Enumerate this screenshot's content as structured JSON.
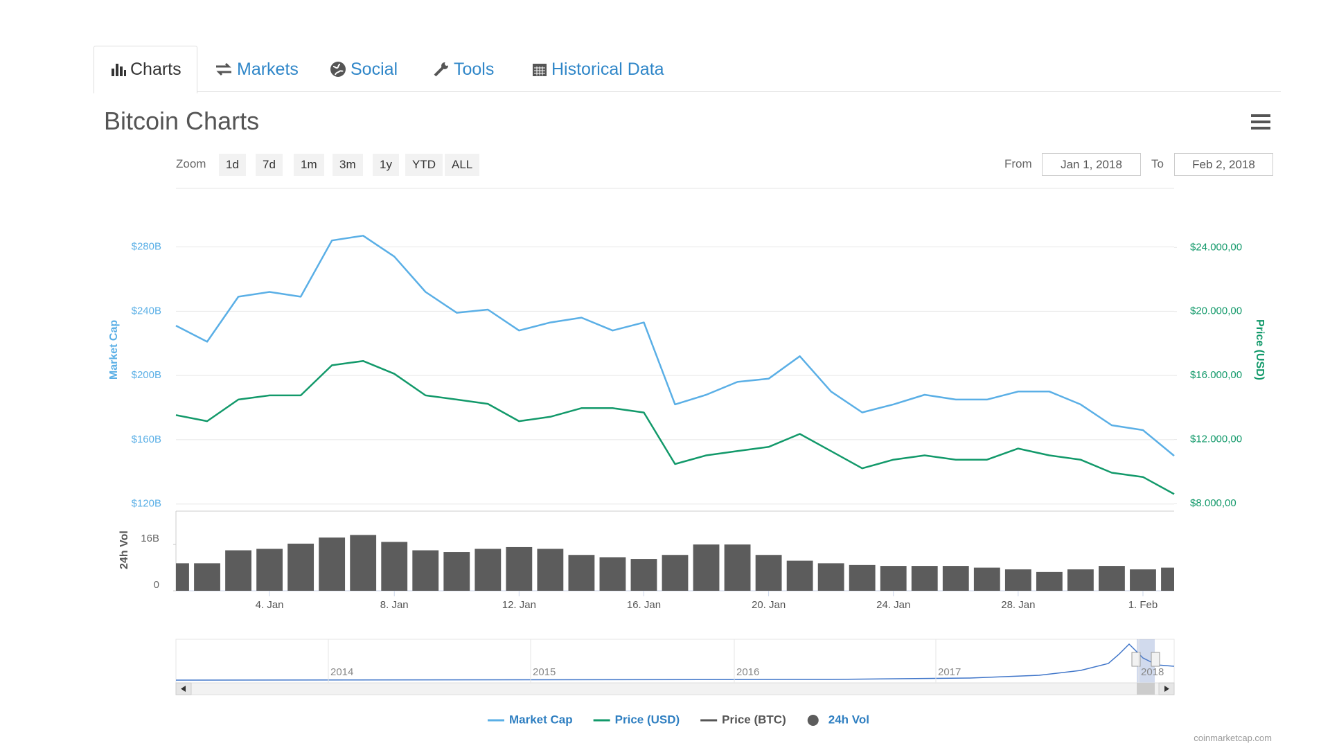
{
  "tabs": [
    "Charts",
    "Markets",
    "Social",
    "Tools",
    "Historical Data"
  ],
  "title": "Bitcoin Charts",
  "zoom": {
    "label": "Zoom",
    "buttons": [
      "1d",
      "7d",
      "1m",
      "3m",
      "1y",
      "YTD",
      "ALL"
    ]
  },
  "range": {
    "from_label": "From",
    "from": "Jan 1, 2018",
    "to_label": "To",
    "to": "Feb 2, 2018"
  },
  "chart_data": {
    "type": "line",
    "x": [
      "2018-01-01",
      "2018-01-02",
      "2018-01-03",
      "2018-01-04",
      "2018-01-05",
      "2018-01-06",
      "2018-01-07",
      "2018-01-08",
      "2018-01-09",
      "2018-01-10",
      "2018-01-11",
      "2018-01-12",
      "2018-01-13",
      "2018-01-14",
      "2018-01-15",
      "2018-01-16",
      "2018-01-17",
      "2018-01-18",
      "2018-01-19",
      "2018-01-20",
      "2018-01-21",
      "2018-01-22",
      "2018-01-23",
      "2018-01-24",
      "2018-01-25",
      "2018-01-26",
      "2018-01-27",
      "2018-01-28",
      "2018-01-29",
      "2018-01-30",
      "2018-01-31",
      "2018-02-01",
      "2018-02-02"
    ],
    "xlim": [
      "2018-01-01",
      "2018-02-02"
    ],
    "xticks": [
      {
        "value": "2018-01-04",
        "label": "4. Jan"
      },
      {
        "value": "2018-01-08",
        "label": "8. Jan"
      },
      {
        "value": "2018-01-12",
        "label": "12. Jan"
      },
      {
        "value": "2018-01-16",
        "label": "16. Jan"
      },
      {
        "value": "2018-01-20",
        "label": "20. Jan"
      },
      {
        "value": "2018-01-24",
        "label": "24. Jan"
      },
      {
        "value": "2018-01-28",
        "label": "28. Jan"
      },
      {
        "value": "2018-02-01",
        "label": "1. Feb"
      }
    ],
    "ylabel": "Market Cap",
    "ylim": [
      116,
      316
    ],
    "yticks": [
      {
        "value": 120,
        "label": "$120B"
      },
      {
        "value": 160,
        "label": "$160B"
      },
      {
        "value": 200,
        "label": "$200B"
      },
      {
        "value": 240,
        "label": "$240B"
      },
      {
        "value": 280,
        "label": "$280B"
      }
    ],
    "y2label": "Price (USD)",
    "y2lim": [
      7570,
      27650
    ],
    "y2ticks": [
      {
        "value": 8000,
        "label": "$8.000,00"
      },
      {
        "value": 12000,
        "label": "$12.000,00"
      },
      {
        "value": 16000,
        "label": "$16.000,00"
      },
      {
        "value": 20000,
        "label": "$20.000,00"
      },
      {
        "value": 24000,
        "label": "$24.000,00"
      }
    ],
    "y3label": "24h Vol",
    "y3lim": [
      0,
      27.3
    ],
    "y3ticks": [
      0,
      {
        "value": 16,
        "label": "16B"
      }
    ],
    "grid": true,
    "legend": "bottom",
    "series": [
      {
        "name": "Market Cap",
        "color": "#5aafe6",
        "values": [
          231,
          221,
          249,
          252,
          249,
          284,
          287,
          274,
          252,
          239,
          241,
          228,
          233,
          236,
          228,
          233,
          182,
          188,
          196,
          198,
          212,
          190,
          177,
          182,
          188,
          185,
          185,
          190,
          190,
          182,
          169,
          166,
          150
        ]
      },
      {
        "name": "Price (USD)",
        "color": "#12996a",
        "axis": "y2",
        "values": [
          13530,
          13150,
          14500,
          14760,
          14760,
          16640,
          16910,
          16110,
          14760,
          14500,
          14230,
          13150,
          13420,
          13960,
          13960,
          13690,
          10470,
          11010,
          11280,
          11540,
          12350,
          11280,
          10200,
          10740,
          11010,
          10740,
          10740,
          11440,
          11010,
          10740,
          9930,
          9660,
          8590
        ]
      },
      {
        "name": "Price (BTC)",
        "color": "#555555",
        "visible": false
      },
      {
        "name": "24h Vol",
        "color": "#5c5c5c",
        "type": "column",
        "axis": "y3",
        "values": [
          9.5,
          9.5,
          14,
          14.5,
          16.3,
          18.4,
          19.3,
          16.9,
          14,
          13.4,
          14.5,
          15.1,
          14.5,
          12.4,
          11.6,
          11,
          12.4,
          16,
          16,
          12.4,
          10.4,
          9.5,
          8.9,
          8.6,
          8.6,
          8.6,
          8,
          7.4,
          6.5,
          7.4,
          8.6,
          7.4,
          8
        ]
      }
    ],
    "navigator": {
      "labels": [
        "2014",
        "2015",
        "2016",
        "2017",
        "2018"
      ]
    }
  },
  "credit": "coinmarketcap.com"
}
